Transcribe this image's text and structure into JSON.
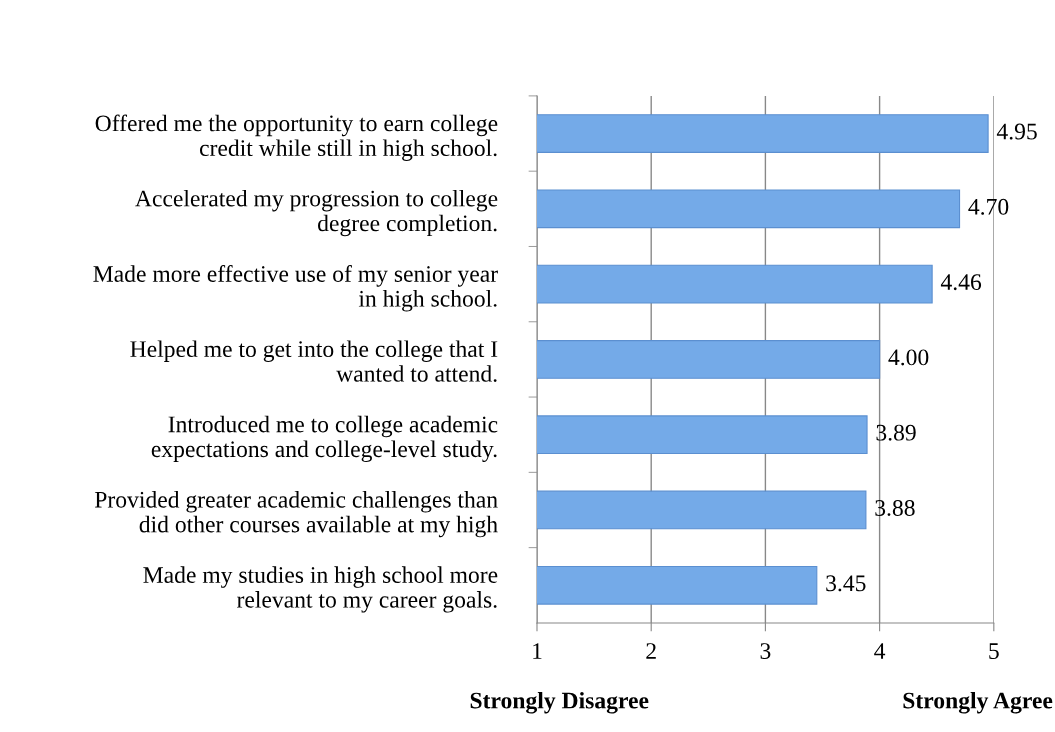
{
  "chart_data": {
    "type": "bar",
    "orientation": "horizontal",
    "categories": [
      "Offered me the opportunity to earn college\ncredit while still in high school.",
      "Accelerated my progression to college\ndegree completion.",
      "Made more effective use of my senior year\nin high school.",
      "Helped me to get into the college that I\nwanted to attend.",
      "Introduced me to college academic\nexpectations and college-level study.",
      "Provided greater academic challenges than\ndid other courses available at my high",
      "Made my studies in high school more\nrelevant to my career goals."
    ],
    "values": [
      4.95,
      4.7,
      4.46,
      4.0,
      3.89,
      3.88,
      3.45
    ],
    "value_labels": [
      "4.95",
      "4.70",
      "4.46",
      "4.00",
      "3.89",
      "3.88",
      "3.45"
    ],
    "color": "#74aae8",
    "xlim": [
      1,
      5
    ],
    "xticks": [
      1,
      2,
      3,
      4,
      5
    ],
    "grid": "x",
    "annotations": [
      "Strongly Disagree",
      "Strongly Agree"
    ]
  }
}
